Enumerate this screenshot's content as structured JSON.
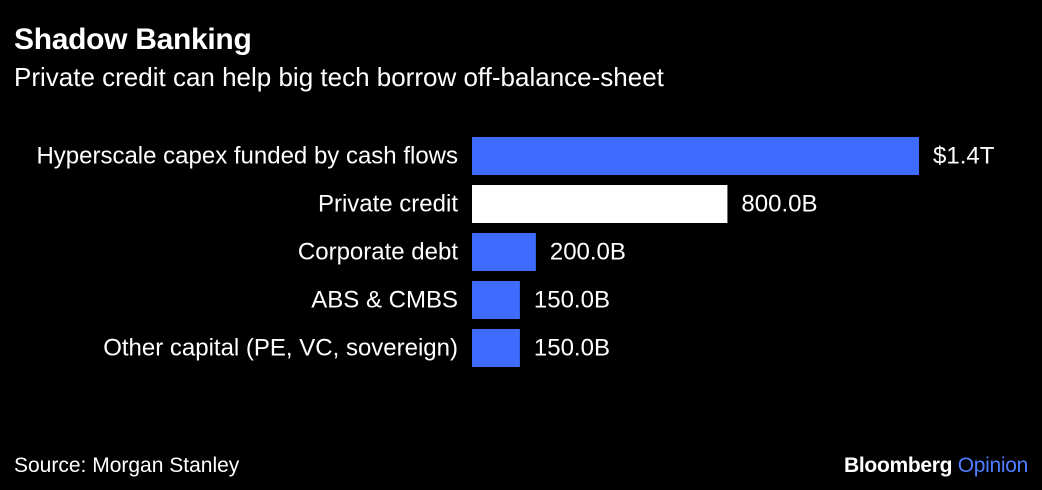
{
  "header": {
    "title": "Shadow Banking",
    "subtitle": "Private credit can help big tech borrow off-balance-sheet"
  },
  "footer": {
    "source": "Source: Morgan Stanley",
    "brand_name": "Bloomberg",
    "brand_suffix": "Opinion"
  },
  "colors": {
    "background": "#000000",
    "bar_blue": "#3f6cff",
    "bar_highlight": "#ffffff",
    "text": "#ffffff",
    "brand_accent": "#4f7dff"
  },
  "chart_data": {
    "type": "bar",
    "orientation": "horizontal",
    "title": "Shadow Banking",
    "subtitle": "Private credit can help big tech borrow off-balance-sheet",
    "categories": [
      "Hyperscale capex funded by cash flows",
      "Private credit",
      "Corporate debt",
      "ABS & CMBS",
      "Other capital (PE, VC, sovereign)"
    ],
    "values": [
      1400,
      800,
      200,
      150,
      150
    ],
    "value_unit": "billions of dollars",
    "data_labels": [
      "$1.4T",
      "800.0B",
      "200.0B",
      "150.0B",
      "150.0B"
    ],
    "highlighted": [
      false,
      true,
      false,
      false,
      false
    ],
    "xlim": [
      0,
      1400
    ],
    "grid": false,
    "legend": "none",
    "source": "Source: Morgan Stanley"
  }
}
